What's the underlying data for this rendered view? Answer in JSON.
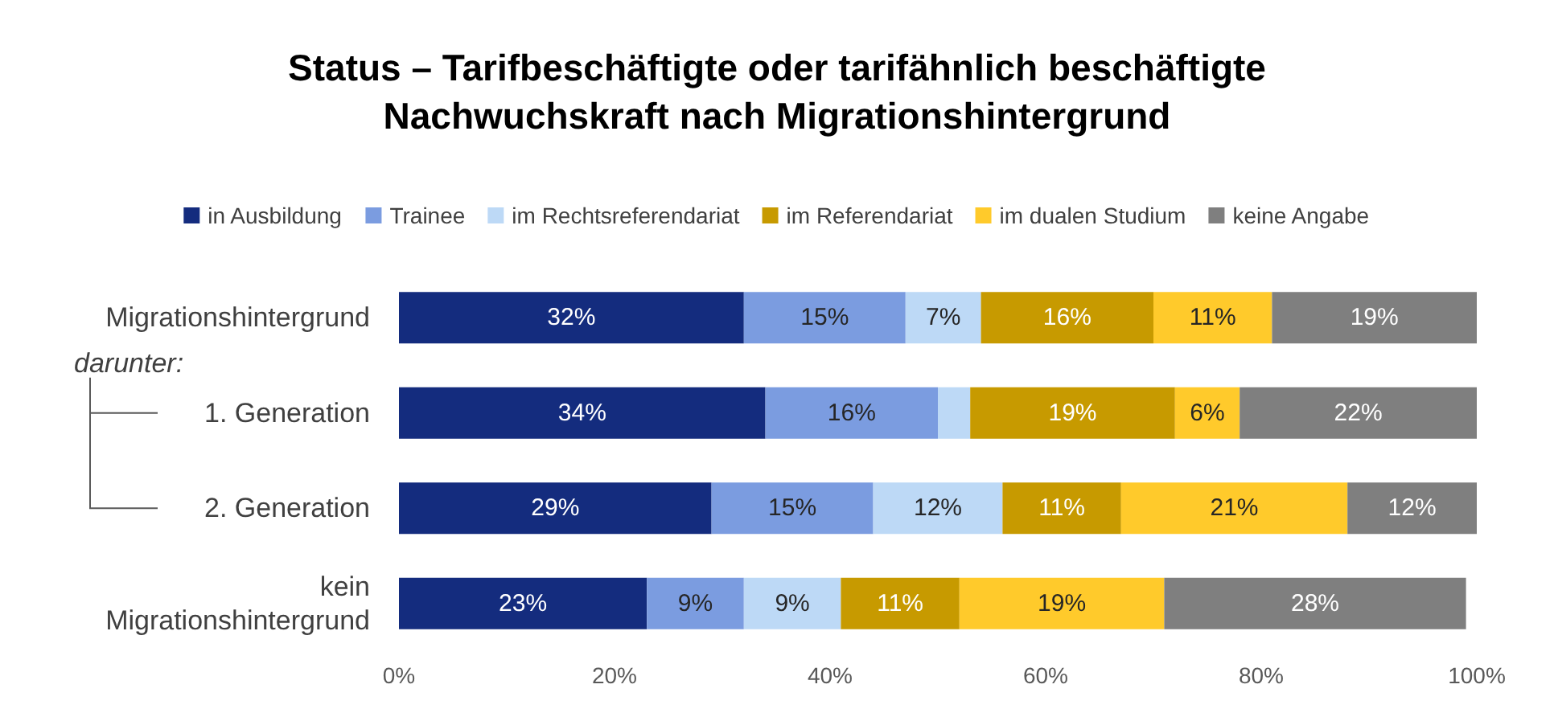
{
  "chart_data": {
    "type": "bar",
    "orientation": "horizontal",
    "stacked": true,
    "title": "Status – Tarifbeschäftigte oder tarifähnlich beschäftigte\nNachwuchskraft nach Migrationshintergrund",
    "categories": [
      "Migrationshintergrund",
      "1. Generation",
      "2. Generation",
      "kein\nMigrationshintergrund"
    ],
    "series": [
      {
        "name": "in Ausbildung",
        "color": "#142c7e",
        "values": [
          32,
          34,
          29,
          23
        ],
        "value_labels": [
          "32%",
          "34%",
          "29%",
          "23%"
        ]
      },
      {
        "name": "Trainee",
        "color": "#7b9ce0",
        "values": [
          15,
          16,
          15,
          9
        ],
        "value_labels": [
          "15%",
          "16%",
          "15%",
          "9%"
        ]
      },
      {
        "name": "im Rechtsreferendariat",
        "color": "#bdd9f6",
        "values": [
          7,
          3,
          12,
          9
        ],
        "value_labels": [
          "7%",
          null,
          "12%",
          "9%"
        ]
      },
      {
        "name": "im Referendariat",
        "color": "#c79a00",
        "values": [
          16,
          19,
          11,
          11
        ],
        "value_labels": [
          "16%",
          "19%",
          "11%",
          "11%"
        ]
      },
      {
        "name": "im dualen Studium",
        "color": "#ffca2b",
        "values": [
          11,
          6,
          21,
          19
        ],
        "value_labels": [
          "11%",
          "6%",
          "21%",
          "19%"
        ]
      },
      {
        "name": "keine Angabe",
        "color": "#7f7f7f",
        "values": [
          19,
          22,
          12,
          28
        ],
        "value_labels": [
          "19%",
          "22%",
          "12%",
          "28%"
        ]
      }
    ],
    "xlim": [
      0,
      100
    ],
    "xticks": [
      {
        "value": 0,
        "label": "0%"
      },
      {
        "value": 20,
        "label": "20%"
      },
      {
        "value": 40,
        "label": "40%"
      },
      {
        "value": 60,
        "label": "60%"
      },
      {
        "value": 80,
        "label": "80%"
      },
      {
        "value": 100,
        "label": "100%"
      }
    ],
    "grid": false,
    "legend": "top",
    "annotations": [
      "darunter:"
    ]
  }
}
